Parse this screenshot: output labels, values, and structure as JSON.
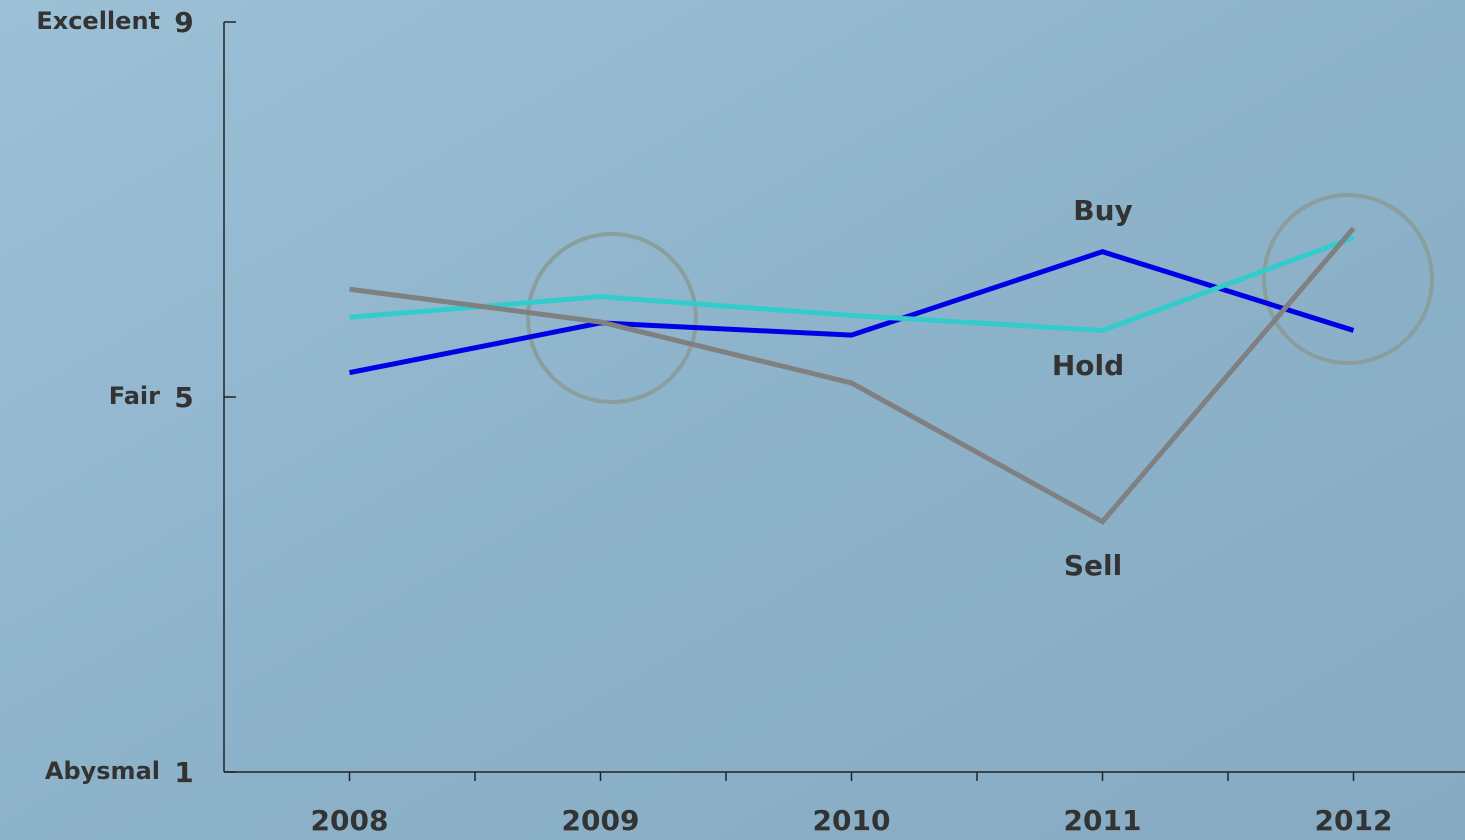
{
  "chart_data": {
    "type": "line",
    "categories": [
      "2008",
      "2009",
      "2010",
      "2011",
      "2012"
    ],
    "series": [
      {
        "name": "Buy",
        "color": "#0000e6",
        "values": [
          5.26,
          5.79,
          5.66,
          6.55,
          5.71
        ]
      },
      {
        "name": "Hold",
        "color": "#33cccc",
        "values": [
          5.85,
          6.07,
          5.87,
          5.71,
          6.7
        ]
      },
      {
        "name": "Sell",
        "color": "#808080",
        "values": [
          6.15,
          5.8,
          5.15,
          3.67,
          6.8
        ]
      }
    ],
    "ylim": [
      1,
      9
    ],
    "yticks": [
      1,
      5,
      9
    ],
    "ytick_names": [
      "Abysmal",
      "Fair",
      "Excellent"
    ],
    "grid": false
  }
}
